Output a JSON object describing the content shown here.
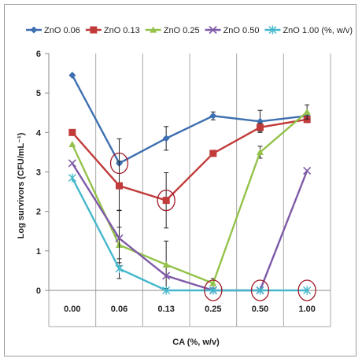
{
  "chart_data": {
    "type": "line",
    "categories": [
      "0.00",
      "0.06",
      "0.13",
      "0.25",
      "0.50",
      "1.00"
    ],
    "xlabel": "CA (%, w/v)",
    "ylabel": "Log survivors (CFU/mL⁻¹)",
    "ylim": [
      0,
      6
    ],
    "yticks": [
      "0",
      "1",
      "2",
      "3",
      "4",
      "5",
      "6"
    ],
    "grid": "vertical lines between categories",
    "legend_position": "top",
    "series": [
      {
        "name": "ZnO 0.06",
        "color": "#3e6fb0",
        "marker": "diamond",
        "values": [
          5.45,
          3.22,
          3.85,
          4.42,
          4.28,
          4.42
        ],
        "errors": [
          0,
          0.62,
          0.3,
          0.1,
          0.28,
          0.08
        ]
      },
      {
        "name": "ZnO 0.13",
        "color": "#c23b3b",
        "marker": "square",
        "values": [
          4.0,
          2.65,
          2.28,
          3.47,
          4.13,
          4.33
        ],
        "errors": [
          0,
          0.62,
          0.7,
          0,
          0.1,
          0.08
        ]
      },
      {
        "name": "ZnO 0.25",
        "color": "#94c24a",
        "marker": "triangle",
        "values": [
          3.7,
          1.15,
          0.65,
          0.18,
          3.5,
          4.52
        ],
        "errors": [
          0,
          0.45,
          0.6,
          0.12,
          0.15,
          0.18
        ]
      },
      {
        "name": "ZnO 0.50",
        "color": "#7e5aa8",
        "marker": "x",
        "values": [
          3.22,
          1.32,
          0.37,
          0.0,
          0.0,
          3.03
        ],
        "errors": [
          0,
          0.7,
          0,
          0,
          0,
          0
        ]
      },
      {
        "name": "ZnO 1.00 (%, w/v)",
        "color": "#45b8cc",
        "marker": "star",
        "values": [
          2.85,
          0.55,
          0.0,
          0.0,
          0.0,
          0.0
        ],
        "errors": [
          0,
          0.25,
          0,
          0,
          0,
          0
        ]
      }
    ],
    "annotations": {
      "type": "circle",
      "color": "#a01a2a",
      "points": [
        {
          "category": "0.06",
          "y": 3.22
        },
        {
          "category": "0.13",
          "y": 2.28
        },
        {
          "category": "0.25",
          "y": 0.0
        },
        {
          "category": "0.50",
          "y": 0.0
        },
        {
          "category": "1.00",
          "y": 0.0
        }
      ]
    }
  }
}
